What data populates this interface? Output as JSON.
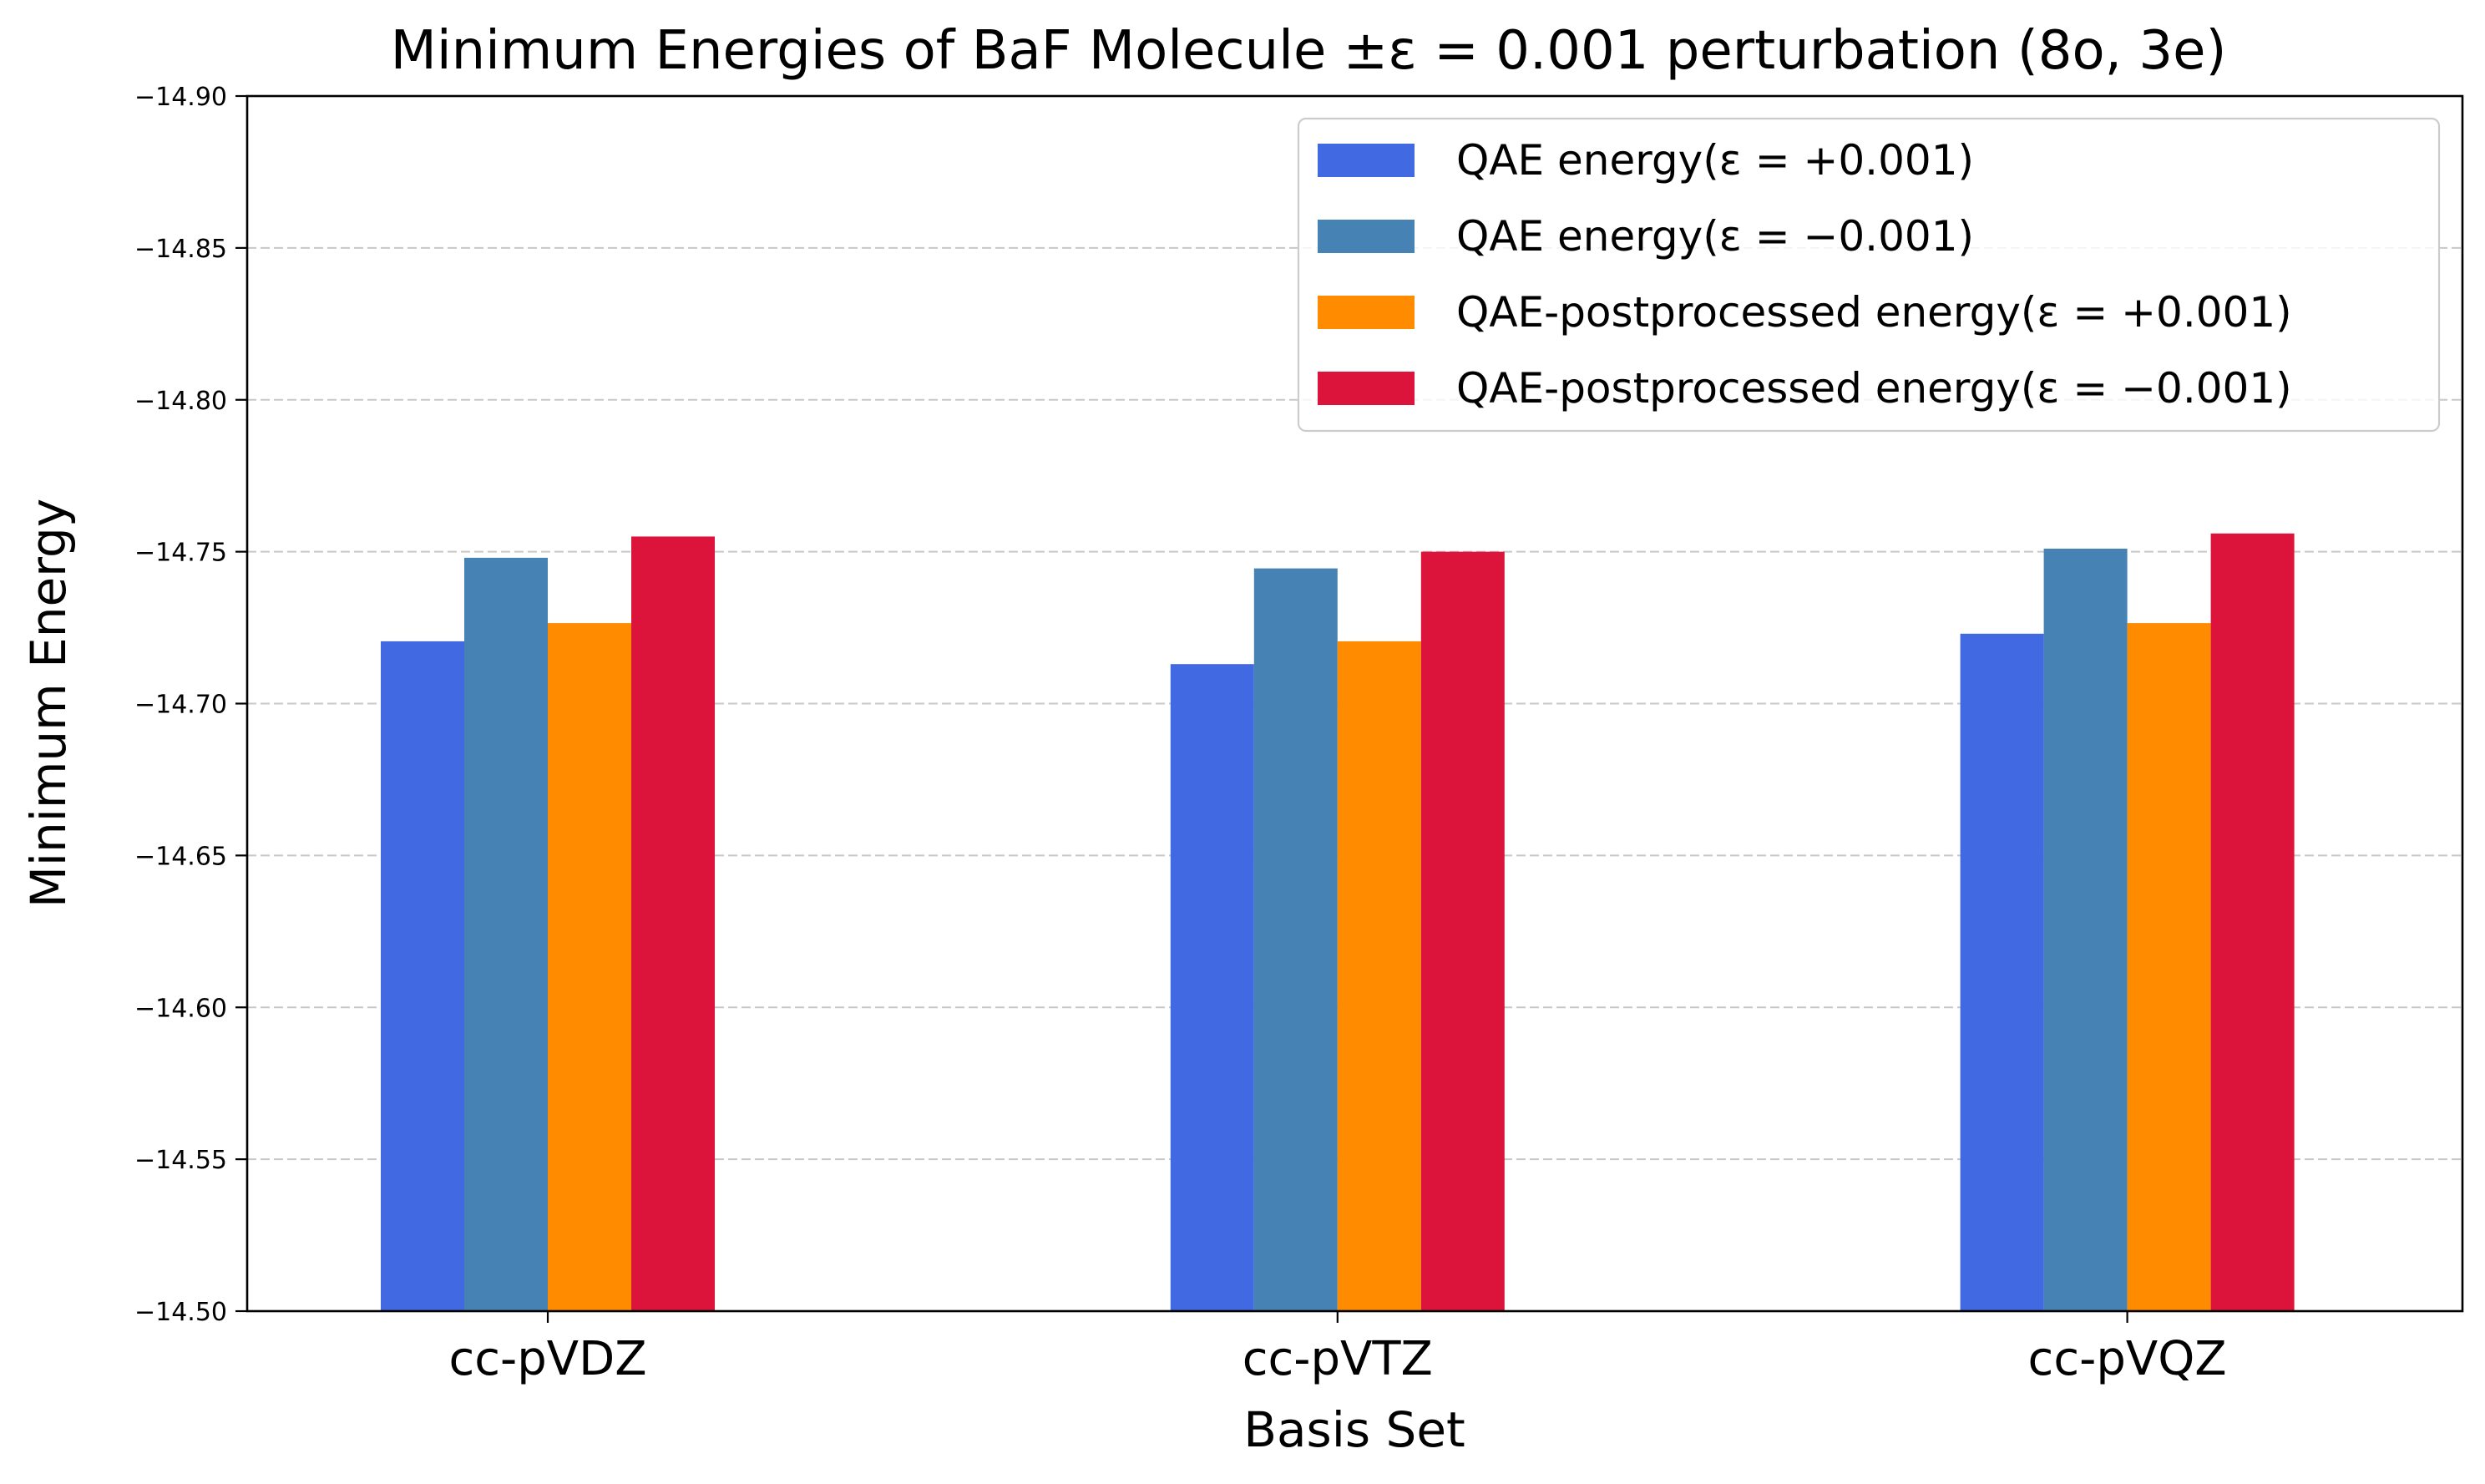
{
  "chart_data": {
    "type": "bar",
    "title": "Minimum Energies of BaF Molecule ±ε = 0.001 perturbation (8o, 3e)",
    "xlabel": "Basis Set",
    "ylabel": "Minimum Energy",
    "categories": [
      "cc-pVDZ",
      "cc-pVTZ",
      "cc-pVQZ"
    ],
    "ylim": [
      -14.9,
      -14.5
    ],
    "yticks": [
      -14.9,
      -14.85,
      -14.8,
      -14.75,
      -14.7,
      -14.65,
      -14.6,
      -14.55,
      -14.5
    ],
    "ytick_labels": [
      "−14.90",
      "−14.85",
      "−14.80",
      "−14.75",
      "−14.70",
      "−14.65",
      "−14.60",
      "−14.55",
      "−14.50"
    ],
    "grid": "y-dashed",
    "legend_position": "top-right",
    "series": [
      {
        "name": "QAE energy(ε = +0.001)",
        "color": "#4169E1",
        "values": [
          -14.7205,
          -14.713,
          -14.723
        ]
      },
      {
        "name": "QAE energy(ε = −0.001)",
        "color": "#4682B4",
        "values": [
          -14.748,
          -14.7445,
          -14.751
        ]
      },
      {
        "name": "QAE-postprocessed energy(ε = +0.001)",
        "color": "#FF8C00",
        "values": [
          -14.7265,
          -14.7205,
          -14.7265
        ]
      },
      {
        "name": "QAE-postprocessed energy(ε = −0.001)",
        "color": "#DC143C",
        "values": [
          -14.755,
          -14.75,
          -14.756
        ]
      }
    ]
  }
}
